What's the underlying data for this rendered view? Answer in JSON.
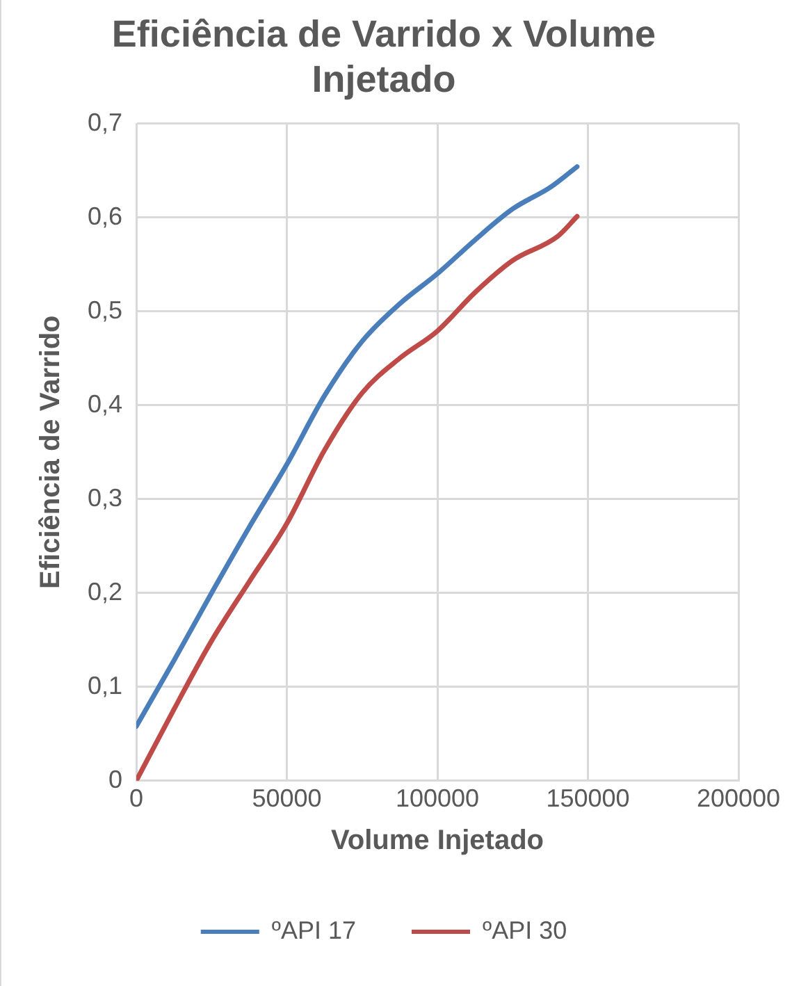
{
  "chart_data": {
    "type": "line",
    "title": "Eficiência de Varrido x Volume Injetado",
    "xlabel": "Volume Injetado",
    "ylabel": "Eficiência de Varrido",
    "xlim": [
      0,
      200000
    ],
    "xticks": [
      0,
      50000,
      100000,
      150000,
      200000
    ],
    "ylim": [
      0,
      0.7
    ],
    "yticks": [
      {
        "value": 0,
        "label": "0"
      },
      {
        "value": 0.1,
        "label": "0,1"
      },
      {
        "value": 0.2,
        "label": "0,2"
      },
      {
        "value": 0.3,
        "label": "0,3"
      },
      {
        "value": 0.4,
        "label": "0,4"
      },
      {
        "value": 0.5,
        "label": "0,5"
      },
      {
        "value": 0.6,
        "label": "0,6"
      },
      {
        "value": 0.7,
        "label": "0,7"
      }
    ],
    "grid": true,
    "legend": "bottom",
    "marker": "none",
    "line_style": "solid",
    "series": [
      {
        "name": "ºAPI 17",
        "color": "#4a7ebb",
        "x": [
          0,
          12500,
          25000,
          37500,
          50000,
          62500,
          75000,
          87500,
          100000,
          112500,
          125000,
          137500,
          146400
        ],
        "values": [
          0.058,
          0.128,
          0.2,
          0.27,
          0.337,
          0.41,
          0.468,
          0.508,
          0.54,
          0.576,
          0.609,
          0.632,
          0.654
        ]
      },
      {
        "name": "ºAPI 30",
        "color": "#be4b48",
        "x": [
          0,
          12500,
          25000,
          37500,
          50000,
          62500,
          75000,
          87500,
          100000,
          112500,
          125000,
          140000,
          146400
        ],
        "values": [
          0,
          0.076,
          0.149,
          0.212,
          0.274,
          0.352,
          0.413,
          0.45,
          0.479,
          0.52,
          0.554,
          0.58,
          0.601
        ]
      }
    ]
  }
}
